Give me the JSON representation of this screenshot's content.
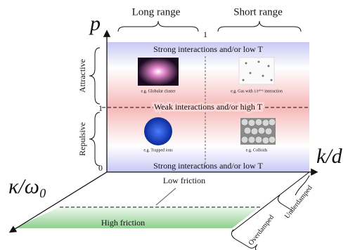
{
  "axes": {
    "vertical": "p",
    "horizontal": "k/d",
    "depth": "κ/ω₀"
  },
  "ranges": {
    "long": "Long range",
    "short": "Short range"
  },
  "ticks": {
    "top": "1",
    "left": "1",
    "origin": "0"
  },
  "sides": {
    "attractive": "Attractive",
    "repulsive": "Repulsive"
  },
  "bands": {
    "top": "Strong interactions and/or low T",
    "middle": "Weak interactions and/or high T",
    "bottom": "Strong interactions and/or low T"
  },
  "examples": {
    "globular": "e.g. Globular cluster",
    "gas": "e.g. Gas with 1/rᵈ⁺¹ interaction",
    "ions": "e.g. Trapped ions",
    "colloids": "e.g. Colloids"
  },
  "friction": {
    "low": "Low friction",
    "high": "High friction"
  },
  "damping": {
    "over": "Overdamped",
    "under": "Underdamped"
  }
}
